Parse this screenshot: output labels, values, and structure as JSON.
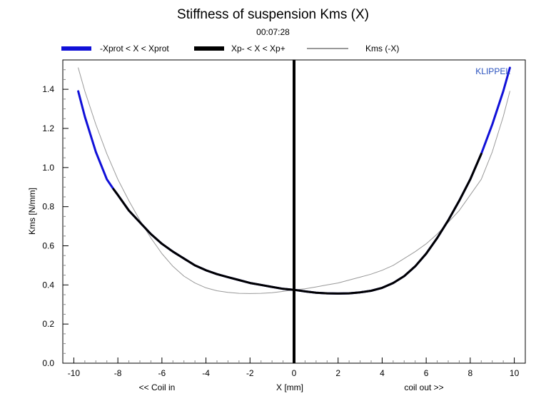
{
  "chart_data": {
    "type": "line",
    "title": "Stiffness of suspension Kms (X)",
    "subtitle": "00:07:28",
    "xlabel": "X [mm]",
    "ylabel": "Kms [N/mm]",
    "x_annotation_left": "<< Coil in",
    "x_annotation_right": "coil out >>",
    "watermark": "KLIPPEL",
    "xlim": [
      -10.5,
      10.5
    ],
    "ylim": [
      0,
      1.55
    ],
    "x_ticks": [
      -10,
      -8,
      -6,
      -4,
      -2,
      0,
      2,
      4,
      6,
      8,
      10
    ],
    "y_ticks": [
      0.0,
      0.2,
      0.4,
      0.6,
      0.8,
      1.0,
      1.2,
      1.4
    ],
    "x_tick_labels": [
      "-10",
      "-8",
      "-6",
      "-4",
      "-2",
      "0",
      "2",
      "4",
      "6",
      "8",
      "10"
    ],
    "y_tick_labels": [
      "0.0",
      "0.2",
      "0.4",
      "0.6",
      "0.8",
      "1.0",
      "1.2",
      "1.4"
    ],
    "grid": false,
    "legend_position": "top",
    "legend": [
      {
        "name": "-Xprot < X < Xprot",
        "color": "#1010d8"
      },
      {
        "name": "Xp- < X < Xp+",
        "color": "#000000"
      },
      {
        "name": "Kms (-X)",
        "color": "#999999"
      }
    ],
    "series": [
      {
        "name": "-Xprot < X < Xprot",
        "color": "#1010d8",
        "x": [
          -9.8,
          -9.5,
          -9.0,
          -8.5,
          -8.2,
          -8.0,
          -7.5,
          -7.0,
          -6.5,
          -6.0,
          -5.5,
          -5.0,
          -4.5,
          -4.0,
          -3.5,
          -3.0,
          -2.5,
          -2.0,
          -1.5,
          -1.0,
          -0.5,
          0.0,
          0.5,
          1.0,
          1.5,
          2.0,
          2.5,
          3.0,
          3.5,
          4.0,
          4.5,
          5.0,
          5.5,
          6.0,
          6.5,
          7.0,
          7.5,
          8.0,
          8.5,
          9.0,
          9.5,
          9.8
        ],
        "y": [
          1.39,
          1.26,
          1.08,
          0.94,
          0.89,
          0.86,
          0.78,
          0.72,
          0.66,
          0.61,
          0.57,
          0.535,
          0.5,
          0.475,
          0.455,
          0.44,
          0.425,
          0.41,
          0.4,
          0.39,
          0.38,
          0.375,
          0.367,
          0.36,
          0.357,
          0.356,
          0.357,
          0.362,
          0.37,
          0.385,
          0.41,
          0.445,
          0.495,
          0.56,
          0.64,
          0.73,
          0.83,
          0.94,
          1.07,
          1.22,
          1.39,
          1.51
        ]
      },
      {
        "name": "Xp- < X < Xp+",
        "color": "#000000",
        "x": [
          -8.2,
          -8.0,
          -7.5,
          -7.0,
          -6.5,
          -6.0,
          -5.5,
          -5.0,
          -4.5,
          -4.0,
          -3.5,
          -3.0,
          -2.5,
          -2.0,
          -1.5,
          -1.0,
          -0.5,
          0.0,
          0.5,
          1.0,
          1.5,
          2.0,
          2.5,
          3.0,
          3.5,
          4.0,
          4.5,
          5.0,
          5.5,
          6.0,
          6.5,
          7.0,
          7.5,
          8.0,
          8.5
        ],
        "y": [
          0.89,
          0.86,
          0.78,
          0.72,
          0.66,
          0.61,
          0.57,
          0.535,
          0.5,
          0.475,
          0.455,
          0.44,
          0.425,
          0.41,
          0.4,
          0.39,
          0.38,
          0.375,
          0.367,
          0.36,
          0.357,
          0.356,
          0.357,
          0.362,
          0.37,
          0.385,
          0.41,
          0.445,
          0.495,
          0.56,
          0.64,
          0.73,
          0.83,
          0.94,
          1.07
        ]
      },
      {
        "name": "Kms (-X)",
        "color": "#999999",
        "x": [
          -9.8,
          -9.5,
          -9.0,
          -8.5,
          -8.0,
          -7.5,
          -7.0,
          -6.5,
          -6.0,
          -5.5,
          -5.0,
          -4.5,
          -4.0,
          -3.5,
          -3.0,
          -2.5,
          -2.0,
          -1.5,
          -1.0,
          -0.5,
          0.0,
          0.5,
          1.0,
          1.5,
          2.0,
          2.5,
          3.0,
          3.5,
          4.0,
          4.5,
          5.0,
          5.5,
          6.0,
          6.5,
          7.0,
          7.5,
          8.0,
          8.5,
          9.0,
          9.5,
          9.8
        ],
        "y": [
          1.51,
          1.39,
          1.22,
          1.07,
          0.94,
          0.83,
          0.73,
          0.64,
          0.56,
          0.495,
          0.445,
          0.41,
          0.385,
          0.37,
          0.362,
          0.357,
          0.356,
          0.357,
          0.36,
          0.367,
          0.375,
          0.38,
          0.39,
          0.4,
          0.41,
          0.425,
          0.44,
          0.455,
          0.475,
          0.5,
          0.535,
          0.57,
          0.61,
          0.66,
          0.72,
          0.78,
          0.86,
          0.94,
          1.08,
          1.26,
          1.39
        ]
      }
    ]
  }
}
